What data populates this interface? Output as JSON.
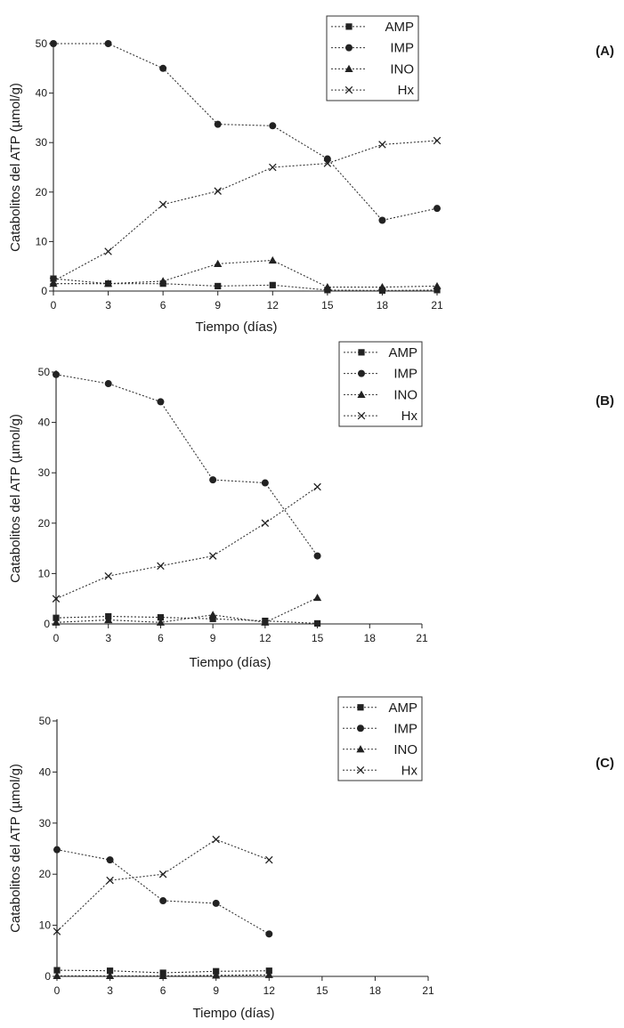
{
  "chart_data": [
    {
      "type": "line",
      "panel_label": "(A)",
      "xlabel": "Tiempo (días)",
      "ylabel": "Catabolitos del ATP (µmol/g)",
      "x_ticks": [
        0,
        3,
        6,
        9,
        12,
        15,
        18,
        21
      ],
      "y_ticks": [
        0,
        10,
        20,
        30,
        40,
        50
      ],
      "xlim": [
        0,
        21
      ],
      "ylim": [
        0,
        50
      ],
      "legend_position": "top-right",
      "series": [
        {
          "name": "AMP",
          "marker": "square",
          "points": [
            [
              0,
              2.5
            ],
            [
              3,
              1.5
            ],
            [
              6,
              1.5
            ],
            [
              9,
              1.0
            ],
            [
              12,
              1.2
            ],
            [
              15,
              0.2
            ],
            [
              18,
              0.1
            ],
            [
              21,
              0.2
            ]
          ]
        },
        {
          "name": "IMP",
          "marker": "circle",
          "points": [
            [
              0,
              50
            ],
            [
              3,
              50
            ],
            [
              6,
              45
            ],
            [
              9,
              33.7
            ],
            [
              12,
              33.4
            ],
            [
              15,
              26.7
            ],
            [
              18,
              14.3
            ],
            [
              21,
              16.7
            ]
          ]
        },
        {
          "name": "INO",
          "marker": "triangle",
          "points": [
            [
              0,
              1.5
            ],
            [
              3,
              1.5
            ],
            [
              6,
              2.0
            ],
            [
              9,
              5.5
            ],
            [
              12,
              6.2
            ],
            [
              15,
              0.8
            ],
            [
              18,
              0.8
            ],
            [
              21,
              1.0
            ]
          ]
        },
        {
          "name": "Hx",
          "marker": "x",
          "points": [
            [
              0,
              2.0
            ],
            [
              3,
              8.0
            ],
            [
              6,
              17.5
            ],
            [
              9,
              20.2
            ],
            [
              12,
              25.0
            ],
            [
              15,
              25.8
            ],
            [
              18,
              29.6
            ],
            [
              21,
              30.4
            ]
          ]
        }
      ]
    },
    {
      "type": "line",
      "panel_label": "(B)",
      "xlabel": "Tiempo (días)",
      "ylabel": "Catabolitos del ATP (µmol/g)",
      "x_ticks": [
        0,
        3,
        6,
        9,
        12,
        15,
        18,
        21
      ],
      "y_ticks": [
        0,
        10,
        20,
        30,
        40,
        50
      ],
      "xlim": [
        0,
        21
      ],
      "ylim": [
        0,
        50
      ],
      "legend_position": "top-right",
      "series": [
        {
          "name": "AMP",
          "marker": "square",
          "points": [
            [
              0,
              1.2
            ],
            [
              3,
              1.5
            ],
            [
              6,
              1.3
            ],
            [
              9,
              1.0
            ],
            [
              12,
              0.6
            ],
            [
              15,
              0.1
            ]
          ]
        },
        {
          "name": "IMP",
          "marker": "circle",
          "points": [
            [
              0,
              49.5
            ],
            [
              3,
              47.7
            ],
            [
              6,
              44.1
            ],
            [
              9,
              28.6
            ],
            [
              12,
              28.0
            ],
            [
              15,
              13.5
            ]
          ]
        },
        {
          "name": "INO",
          "marker": "triangle",
          "points": [
            [
              0,
              0.3
            ],
            [
              3,
              0.8
            ],
            [
              6,
              0.3
            ],
            [
              9,
              1.8
            ],
            [
              12,
              0.3
            ],
            [
              15,
              5.2
            ]
          ]
        },
        {
          "name": "Hx",
          "marker": "x",
          "points": [
            [
              0,
              5.0
            ],
            [
              3,
              9.5
            ],
            [
              6,
              11.5
            ],
            [
              9,
              13.5
            ],
            [
              12,
              20.0
            ],
            [
              15,
              27.2
            ]
          ]
        }
      ]
    },
    {
      "type": "line",
      "panel_label": "(C)",
      "xlabel": "Tiempo (días)",
      "ylabel": "Catabolitos del ATP (µmol/g)",
      "x_ticks": [
        0,
        3,
        6,
        9,
        12,
        15,
        18,
        21
      ],
      "y_ticks": [
        0,
        10,
        20,
        30,
        40,
        50
      ],
      "xlim": [
        0,
        21
      ],
      "ylim": [
        0,
        50
      ],
      "legend_position": "top-right",
      "series": [
        {
          "name": "AMP",
          "marker": "square",
          "points": [
            [
              0,
              1.2
            ],
            [
              3,
              1.1
            ],
            [
              6,
              0.7
            ],
            [
              9,
              1.0
            ],
            [
              12,
              1.1
            ]
          ]
        },
        {
          "name": "IMP",
          "marker": "circle",
          "points": [
            [
              0,
              24.8
            ],
            [
              3,
              22.8
            ],
            [
              6,
              14.8
            ],
            [
              9,
              14.3
            ],
            [
              12,
              8.3
            ]
          ]
        },
        {
          "name": "INO",
          "marker": "triangle",
          "points": [
            [
              0,
              0.1
            ],
            [
              3,
              0.1
            ],
            [
              6,
              0.1
            ],
            [
              9,
              0.2
            ],
            [
              12,
              0.3
            ]
          ]
        },
        {
          "name": "Hx",
          "marker": "x",
          "points": [
            [
              0,
              8.8
            ],
            [
              3,
              18.8
            ],
            [
              6,
              20.0
            ],
            [
              9,
              26.8
            ],
            [
              12,
              22.8
            ]
          ]
        }
      ]
    }
  ]
}
